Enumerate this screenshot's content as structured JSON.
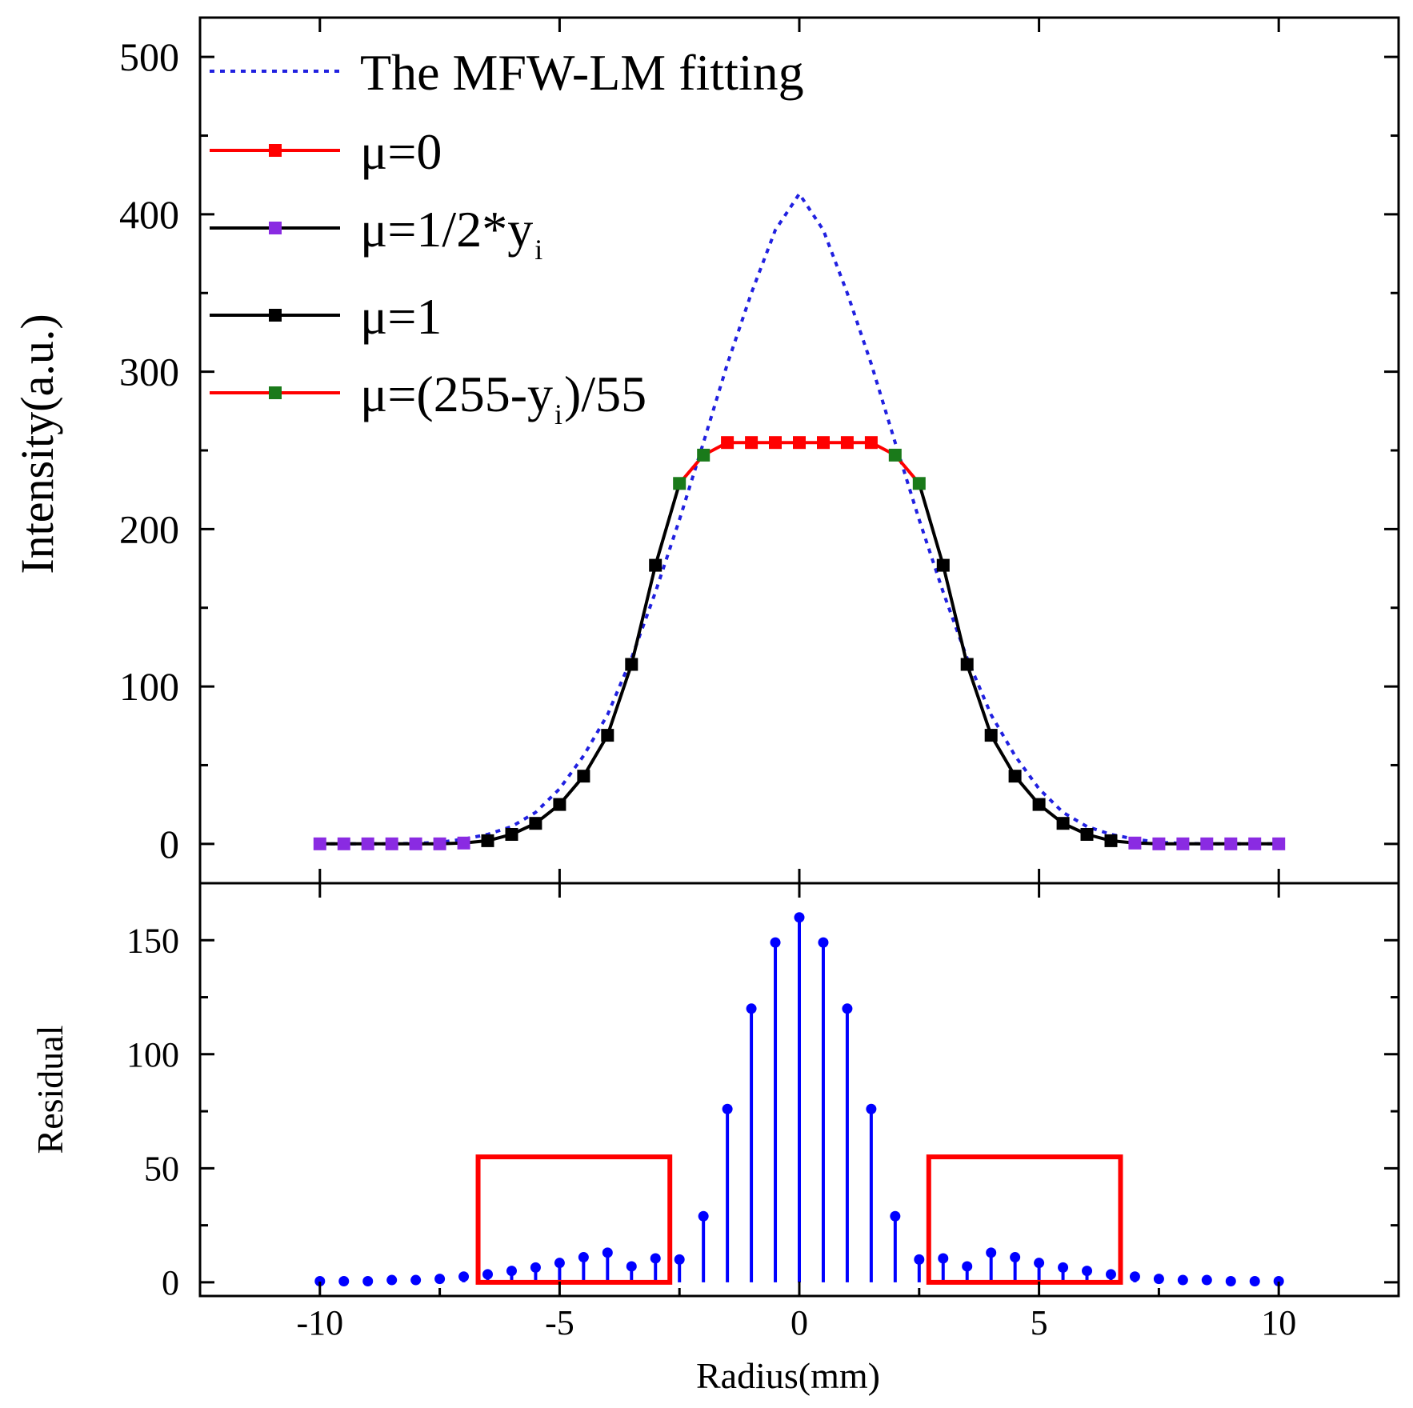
{
  "chart_data": [
    {
      "type": "line",
      "panel": "top",
      "ylabel": "Intensity(a.u.)",
      "xlabel": "",
      "xlim": [
        -12.5,
        12.5
      ],
      "ylim": [
        -25,
        525
      ],
      "yticks": [
        0,
        100,
        200,
        300,
        400,
        500
      ],
      "ytick_labels": [
        "0",
        "100",
        "200",
        "300",
        "400",
        "500"
      ],
      "xticks": [
        -10,
        -5,
        0,
        5,
        10
      ],
      "legend_position": "top-left",
      "colors": {
        "fit": "#2020e0",
        "red": "#ff0000",
        "black": "#000000",
        "purple": "#8a2be2",
        "green": "#1a7a1a",
        "blue_stem": "#0000ff"
      },
      "fit_curve": {
        "name": "The MFW-LM fitting",
        "style": "dotted",
        "x": [
          -10,
          -9.5,
          -9,
          -8.5,
          -8,
          -7.5,
          -7,
          -6.5,
          -6,
          -5.5,
          -5,
          -4.5,
          -4,
          -3.5,
          -3,
          -2.5,
          -2,
          -1.5,
          -1,
          -0.5,
          0,
          0.5,
          1,
          1.5,
          2,
          2.5,
          3,
          3.5,
          4,
          4.5,
          5,
          5.5,
          6,
          6.5,
          7,
          7.5,
          8,
          8.5,
          9,
          9.5,
          10
        ],
        "y": [
          0,
          0,
          0,
          0,
          0.3,
          1,
          3,
          6,
          11,
          20,
          35,
          56,
          82,
          118,
          160,
          206,
          255,
          305,
          350,
          390,
          413,
          390,
          350,
          305,
          255,
          206,
          160,
          118,
          82,
          56,
          35,
          20,
          11,
          6,
          3,
          1,
          0.3,
          0,
          0,
          0,
          0
        ]
      },
      "series": [
        {
          "name": "μ=0",
          "legend_main": "μ=0",
          "legend_sub": "",
          "legend_after": "",
          "line_color": "#ff0000",
          "marker_color": "#ff0000",
          "x": [
            -1.5,
            -1,
            -0.5,
            0,
            0.5,
            1,
            1.5
          ],
          "y": [
            255,
            255,
            255,
            255,
            255,
            255,
            255
          ]
        },
        {
          "name": "μ=1/2*yi",
          "legend_main": "μ=1/2*y",
          "legend_sub": "i",
          "legend_after": "",
          "line_color": "#000000",
          "marker_color": "#8a2be2",
          "x": [
            -10,
            -9.5,
            -9,
            -8.5,
            -8,
            -7.5,
            -7,
            7,
            7.5,
            8,
            8.5,
            9,
            9.5,
            10
          ],
          "y": [
            0,
            0,
            0,
            0,
            0,
            0,
            0.5,
            0.5,
            0,
            0,
            0,
            0,
            0,
            0
          ]
        },
        {
          "name": "μ=1",
          "legend_main": "μ=1",
          "legend_sub": "",
          "legend_after": "",
          "line_color": "#000000",
          "marker_color": "#000000",
          "x": [
            -6.5,
            -6,
            -5.5,
            -5,
            -4.5,
            -4,
            -3.5,
            -3,
            3,
            3.5,
            4,
            4.5,
            5,
            5.5,
            6,
            6.5
          ],
          "y": [
            2,
            6,
            13,
            25,
            43,
            69,
            114,
            177,
            177,
            114,
            69,
            43,
            25,
            13,
            6,
            2
          ]
        },
        {
          "name": "μ=(255-yi)/55",
          "legend_main": "μ=(255-y",
          "legend_sub": "i",
          "legend_after": ")/55",
          "line_color": "#ff0000",
          "marker_color": "#1a7a1a",
          "x": [
            -2.5,
            -2,
            2,
            2.5
          ],
          "y": [
            229,
            247,
            247,
            229
          ]
        }
      ],
      "connecting_lines": [
        {
          "color": "#000000",
          "x": [
            -10,
            -9.5,
            -9,
            -8.5,
            -8,
            -7.5,
            -7,
            -6.5,
            -6,
            -5.5,
            -5,
            -4.5,
            -4,
            -3.5,
            -3,
            -2.5
          ],
          "y": [
            0,
            0,
            0,
            0,
            0,
            0,
            0.5,
            2,
            6,
            13,
            25,
            43,
            69,
            114,
            177,
            229
          ]
        },
        {
          "color": "#ff0000",
          "x": [
            -2.5,
            -2,
            -1.5,
            -1,
            -0.5,
            0,
            0.5,
            1,
            1.5,
            2,
            2.5
          ],
          "y": [
            229,
            247,
            255,
            255,
            255,
            255,
            255,
            255,
            255,
            247,
            229
          ]
        },
        {
          "color": "#000000",
          "x": [
            2.5,
            3,
            3.5,
            4,
            4.5,
            5,
            5.5,
            6,
            6.5,
            7,
            7.5,
            8,
            8.5,
            9,
            9.5,
            10
          ],
          "y": [
            229,
            177,
            114,
            69,
            43,
            25,
            13,
            6,
            2,
            0.5,
            0,
            0,
            0,
            0,
            0,
            0
          ]
        }
      ]
    },
    {
      "type": "stem",
      "panel": "bottom",
      "xlabel": "Radius(mm)",
      "ylabel": "Residual",
      "xlim": [
        -12.5,
        12.5
      ],
      "ylim": [
        -6,
        175
      ],
      "yticks": [
        0,
        50,
        100,
        150
      ],
      "ytick_labels": [
        "0",
        "50",
        "100",
        "150"
      ],
      "xticks": [
        -10,
        -5,
        0,
        5,
        10
      ],
      "xtick_labels": [
        "-10",
        "-5",
        "0",
        "5",
        "10"
      ],
      "color": "#0000ff",
      "x": [
        -10,
        -9.5,
        -9,
        -8.5,
        -8,
        -7.5,
        -7,
        -6.5,
        -6,
        -5.5,
        -5,
        -4.5,
        -4,
        -3.5,
        -3,
        -2.5,
        -2,
        -1.5,
        -1,
        -0.5,
        0,
        0.5,
        1,
        1.5,
        2,
        2.5,
        3,
        3.5,
        4,
        4.5,
        5,
        5.5,
        6,
        6.5,
        7,
        7.5,
        8,
        8.5,
        9,
        9.5,
        10
      ],
      "y": [
        0.5,
        0.5,
        0.5,
        1,
        1,
        1.5,
        2.5,
        3.5,
        5,
        6.5,
        8.5,
        11,
        13,
        7,
        10.5,
        10,
        29,
        76,
        120,
        149,
        160,
        149,
        120,
        76,
        29,
        10,
        10.5,
        7,
        13,
        11,
        8.5,
        6.5,
        5,
        3.5,
        2.5,
        1.5,
        1,
        1,
        0.5,
        0.5,
        0.5
      ],
      "highlight_boxes": [
        {
          "x_range": [
            -6.7,
            -2.7
          ],
          "y_range": [
            0,
            55
          ],
          "color": "#ff0000"
        },
        {
          "x_range": [
            2.7,
            6.7
          ],
          "y_range": [
            0,
            55
          ],
          "color": "#ff0000"
        }
      ]
    }
  ]
}
